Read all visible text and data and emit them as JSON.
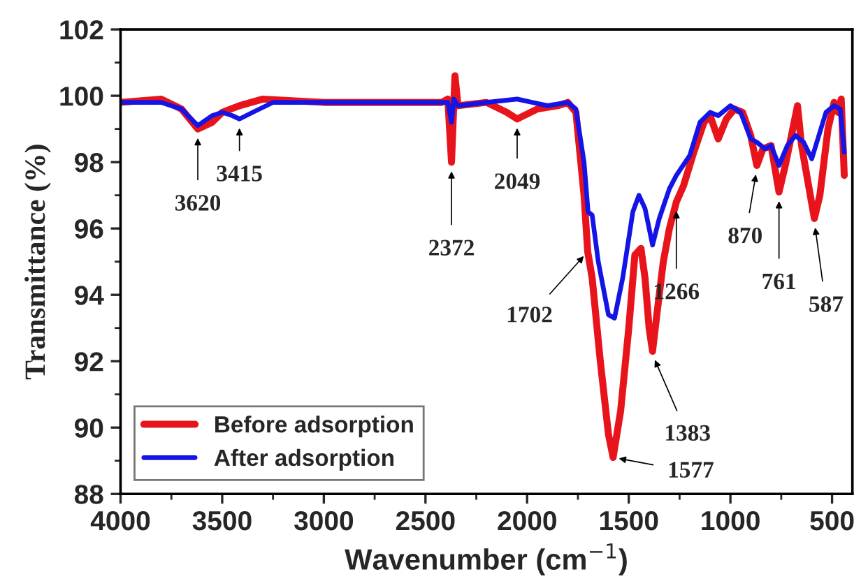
{
  "chart_data": {
    "type": "line",
    "xlabel": "Wavenumber (cm$^{−1}$)",
    "ylabel": "Transmittance (%)",
    "xlim": [
      4000,
      400
    ],
    "xticks": [
      4000,
      3500,
      3000,
      2500,
      2000,
      1500,
      1000,
      500
    ],
    "ylim": [
      88,
      102
    ],
    "yticks": [
      88,
      90,
      92,
      94,
      96,
      98,
      100,
      102
    ],
    "grid": false,
    "legend": "bottom left",
    "marker": "none",
    "line_style": "solid",
    "series": [
      {
        "name": "Before adsorption",
        "color": "#e8141b",
        "x": [
          4000,
          3800,
          3700,
          3620,
          3550,
          3500,
          3415,
          3300,
          3000,
          2500,
          2420,
          2390,
          2372,
          2355,
          2340,
          2200,
          2100,
          2049,
          1950,
          1850,
          1800,
          1760,
          1720,
          1702,
          1680,
          1640,
          1600,
          1577,
          1540,
          1500,
          1470,
          1440,
          1420,
          1400,
          1383,
          1360,
          1330,
          1300,
          1266,
          1230,
          1180,
          1130,
          1100,
          1060,
          1020,
          980,
          940,
          900,
          870,
          840,
          800,
          761,
          730,
          700,
          670,
          650,
          587,
          560,
          520,
          490,
          470,
          455,
          440
        ],
        "values": [
          99.8,
          99.9,
          99.6,
          99.0,
          99.2,
          99.5,
          99.7,
          99.9,
          99.8,
          99.8,
          99.8,
          99.9,
          98.0,
          100.6,
          99.7,
          99.8,
          99.5,
          99.3,
          99.6,
          99.7,
          99.8,
          99.5,
          97.0,
          95.3,
          94.5,
          92.0,
          89.8,
          89.1,
          90.5,
          93.0,
          95.2,
          95.4,
          94.5,
          93.0,
          92.3,
          93.5,
          95.0,
          96.0,
          96.8,
          97.3,
          98.3,
          99.2,
          99.4,
          98.7,
          99.3,
          99.6,
          99.5,
          98.8,
          97.9,
          98.4,
          98.5,
          97.1,
          97.9,
          98.8,
          99.7,
          98.5,
          96.3,
          97.0,
          99.0,
          99.8,
          99.5,
          99.9,
          97.6
        ]
      },
      {
        "name": "After adsorption",
        "color": "#1414e6",
        "x": [
          4000,
          3800,
          3700,
          3620,
          3550,
          3500,
          3450,
          3415,
          3350,
          3250,
          3000,
          2500,
          2390,
          2372,
          2360,
          2340,
          2200,
          2049,
          1900,
          1800,
          1760,
          1720,
          1700,
          1680,
          1650,
          1600,
          1570,
          1530,
          1480,
          1450,
          1420,
          1383,
          1350,
          1300,
          1266,
          1200,
          1150,
          1100,
          1060,
          1000,
          950,
          900,
          870,
          830,
          800,
          761,
          720,
          680,
          640,
          600,
          570,
          530,
          490,
          460,
          440
        ],
        "values": [
          99.8,
          99.8,
          99.6,
          99.1,
          99.4,
          99.5,
          99.4,
          99.3,
          99.5,
          99.8,
          99.8,
          99.8,
          99.8,
          99.2,
          99.9,
          99.7,
          99.8,
          99.9,
          99.7,
          99.8,
          99.6,
          98.0,
          96.5,
          96.4,
          95.0,
          93.4,
          93.3,
          94.5,
          96.5,
          97.0,
          96.6,
          95.5,
          96.3,
          97.2,
          97.6,
          98.2,
          99.2,
          99.5,
          99.4,
          99.7,
          99.5,
          98.7,
          98.6,
          98.4,
          98.5,
          97.9,
          98.5,
          98.8,
          98.6,
          98.1,
          98.7,
          99.5,
          99.7,
          99.6,
          98.3
        ]
      }
    ],
    "annotations": [
      {
        "text": "3620",
        "x": 3620,
        "y": 98.9
      },
      {
        "text": "3415",
        "x": 3415,
        "y": 99.2
      },
      {
        "text": "2372",
        "x": 2372,
        "y": 97.9
      },
      {
        "text": "2049",
        "x": 2049,
        "y": 99.2
      },
      {
        "text": "1702",
        "x": 1702,
        "y": 95.3
      },
      {
        "text": "1383",
        "x": 1383,
        "y": 92.2
      },
      {
        "text": "1577",
        "x": 1577,
        "y": 89.1
      },
      {
        "text": "1266",
        "x": 1266,
        "y": 96.7
      },
      {
        "text": "870",
        "x": 870,
        "y": 97.8
      },
      {
        "text": "761",
        "x": 761,
        "y": 97.0
      },
      {
        "text": "587",
        "x": 587,
        "y": 96.2
      }
    ]
  }
}
